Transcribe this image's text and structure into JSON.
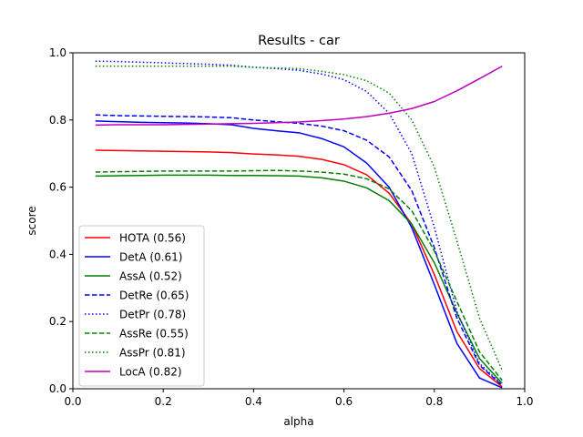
{
  "chart_data": {
    "type": "line",
    "title": "Results - car",
    "xlabel": "alpha",
    "ylabel": "score",
    "xlim": [
      0.0,
      1.0
    ],
    "ylim": [
      0.0,
      1.0
    ],
    "xticks": [
      "0.0",
      "0.2",
      "0.4",
      "0.6",
      "0.8",
      "1.0"
    ],
    "yticks": [
      "0.0",
      "0.2",
      "0.4",
      "0.6",
      "0.8",
      "1.0"
    ],
    "grid": false,
    "legend_position": "lower-left",
    "x": [
      0.05,
      0.1,
      0.15,
      0.2,
      0.25,
      0.3,
      0.35,
      0.4,
      0.45,
      0.5,
      0.55,
      0.6,
      0.65,
      0.7,
      0.75,
      0.8,
      0.85,
      0.9,
      0.95
    ],
    "series": [
      {
        "name": "HOTA (0.56)",
        "color": "#ff0000",
        "dash": "solid",
        "values": [
          0.71,
          0.709,
          0.708,
          0.707,
          0.706,
          0.705,
          0.703,
          0.699,
          0.696,
          0.692,
          0.683,
          0.667,
          0.637,
          0.582,
          0.49,
          0.34,
          0.17,
          0.06,
          0.006
        ]
      },
      {
        "name": "DetA (0.61)",
        "color": "#0000ff",
        "dash": "solid",
        "values": [
          0.797,
          0.795,
          0.793,
          0.792,
          0.791,
          0.789,
          0.786,
          0.775,
          0.768,
          0.762,
          0.745,
          0.72,
          0.672,
          0.6,
          0.48,
          0.31,
          0.135,
          0.032,
          0.003
        ]
      },
      {
        "name": "AssA (0.52)",
        "color": "#008000",
        "dash": "solid",
        "values": [
          0.633,
          0.634,
          0.635,
          0.636,
          0.636,
          0.636,
          0.635,
          0.635,
          0.634,
          0.633,
          0.628,
          0.618,
          0.598,
          0.56,
          0.49,
          0.375,
          0.225,
          0.09,
          0.016
        ]
      },
      {
        "name": "DetRe (0.65)",
        "color": "#0000ff",
        "dash": "dashed",
        "values": [
          0.815,
          0.813,
          0.812,
          0.811,
          0.81,
          0.809,
          0.807,
          0.8,
          0.795,
          0.79,
          0.782,
          0.768,
          0.74,
          0.69,
          0.59,
          0.42,
          0.21,
          0.07,
          0.01
        ]
      },
      {
        "name": "DetPr (0.78)",
        "color": "#0000ff",
        "dash": "dotted",
        "values": [
          0.975,
          0.974,
          0.972,
          0.97,
          0.968,
          0.966,
          0.963,
          0.957,
          0.953,
          0.948,
          0.937,
          0.92,
          0.885,
          0.82,
          0.7,
          0.48,
          0.23,
          0.075,
          0.012
        ]
      },
      {
        "name": "AssRe (0.55)",
        "color": "#008000",
        "dash": "dashed",
        "values": [
          0.645,
          0.646,
          0.647,
          0.648,
          0.648,
          0.648,
          0.648,
          0.649,
          0.65,
          0.648,
          0.645,
          0.639,
          0.625,
          0.595,
          0.53,
          0.41,
          0.26,
          0.11,
          0.025
        ]
      },
      {
        "name": "AssPr (0.81)",
        "color": "#008000",
        "dash": "dotted",
        "values": [
          0.96,
          0.96,
          0.96,
          0.96,
          0.96,
          0.96,
          0.96,
          0.957,
          0.955,
          0.953,
          0.945,
          0.935,
          0.917,
          0.88,
          0.8,
          0.66,
          0.44,
          0.21,
          0.055
        ]
      },
      {
        "name": "LocA (0.82)",
        "color": "#bf00bf",
        "dash": "solid",
        "values": [
          0.785,
          0.786,
          0.786,
          0.786,
          0.787,
          0.788,
          0.789,
          0.79,
          0.792,
          0.794,
          0.798,
          0.803,
          0.81,
          0.82,
          0.834,
          0.855,
          0.887,
          0.923,
          0.96
        ]
      }
    ]
  }
}
